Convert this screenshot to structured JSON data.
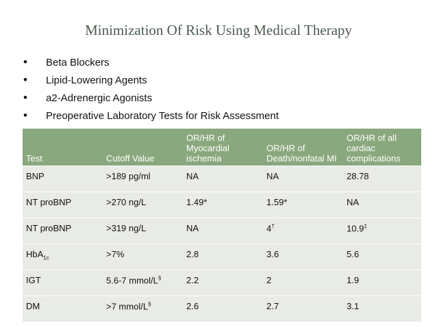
{
  "slide": {
    "title": "Minimization Of Risk Using Medical Therapy",
    "bullets": [
      "Beta Blockers",
      "Lipid-Lowering Agents",
      "a2-Adrenergic Agonists",
      "Preoperative Laboratory Tests for Risk Assessment"
    ],
    "table": {
      "header": [
        "Test",
        "Cutoff Value",
        "OR/HR of Myocardial ischemia",
        "OR/HR of Death/nonfatal MI",
        "OR/HR of all cardiac complications"
      ],
      "rows": [
        [
          "BNP",
          ">189 pg/ml",
          "NA",
          "NA",
          "28.78"
        ],
        [
          "NT proBNP",
          ">270 ng/L",
          "1.49*",
          "1.59*",
          "NA"
        ],
        [
          "NT proBNP",
          ">319 ng/L",
          "NA",
          {
            "text": "4",
            "sup": "†"
          },
          {
            "text": "10.9",
            "sup": "‡"
          }
        ],
        [
          {
            "text": "HbA",
            "sub": "1c"
          },
          ">7%",
          "2.8",
          "3.6",
          "5.6"
        ],
        [
          "IGT",
          {
            "text": "5.6-7 mmol/L",
            "sup": "§"
          },
          "2.2",
          "2",
          "1.9"
        ],
        [
          "DM",
          {
            "text": ">7 mmol/L",
            "sup": "§"
          },
          "2.6",
          "2.7",
          "3.1"
        ]
      ]
    }
  }
}
